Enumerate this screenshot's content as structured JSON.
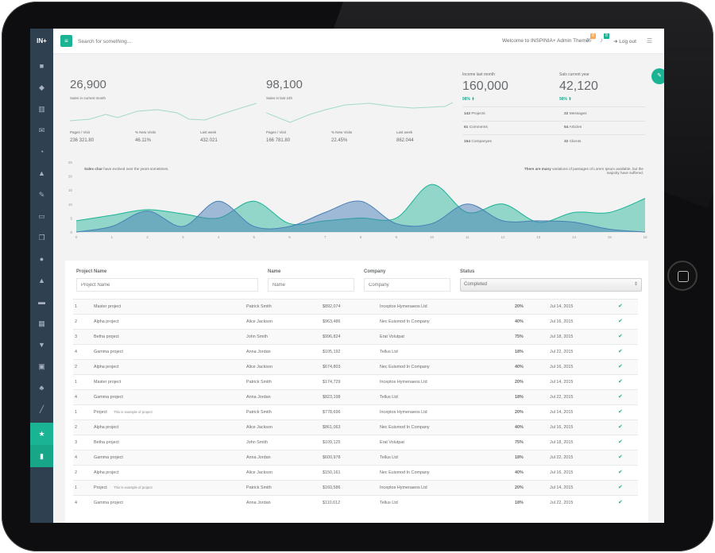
{
  "app": {
    "logo": "IN+"
  },
  "topbar": {
    "search_placeholder": "Search for something...",
    "welcome": "Welcome to INSPINIA+ Admin Theme.",
    "mail_count": "8",
    "alert_count": "8",
    "logout": "Log out"
  },
  "stats": [
    {
      "value": "26,900",
      "label": "Sales in current month",
      "mini": [
        {
          "h": "Pages / Visit",
          "v": "236 321.80"
        },
        {
          "h": "% New Visits",
          "v": "46.11%"
        },
        {
          "h": "Last week",
          "v": "432.021"
        }
      ]
    },
    {
      "value": "98,100",
      "label": "Sales in last 24h",
      "mini": [
        {
          "h": "Pages / Visit",
          "v": "166 781.80"
        },
        {
          "h": "% New Visits",
          "v": "22.45%"
        },
        {
          "h": "Last week",
          "v": "862.044"
        }
      ]
    }
  ],
  "kpi": {
    "income": {
      "title": "Income last month",
      "value": "160,000",
      "pct": "98%"
    },
    "sales": {
      "title": "Sals current year",
      "value": "42,120",
      "pct": "98%"
    },
    "rows": [
      {
        "n1": "142",
        "l1": "Projects",
        "n2": "22",
        "l2": "Messages"
      },
      {
        "n1": "61",
        "l1": "Comments",
        "n2": "54",
        "l2": "Articles"
      },
      {
        "n1": "154",
        "l1": "Companyes",
        "n2": "32",
        "l2": "Clients"
      }
    ]
  },
  "chart_note_left": {
    "bold": "Sales char",
    "text": "have evolved over the years sometimes."
  },
  "chart_note_right": {
    "bold": "There are many",
    "text": "variations of passages of Lorem Ipsum available, but the",
    "text2": "majority have suffered."
  },
  "chart_data": {
    "type": "area",
    "x": [
      0,
      1,
      2,
      3,
      4,
      5,
      6,
      7,
      8,
      9,
      10,
      11,
      12,
      13,
      14,
      15,
      16
    ],
    "ylim": [
      0,
      25
    ],
    "yticks": [
      0,
      5,
      10,
      15,
      20,
      25
    ],
    "series": [
      {
        "color": "#1ab394",
        "values": [
          4,
          6,
          8,
          6.5,
          5,
          11,
          3,
          4,
          5,
          5,
          17,
          7,
          10,
          3.5,
          7,
          7,
          12
        ]
      },
      {
        "color": "#4a7fb5",
        "values": [
          0,
          2,
          7.5,
          2,
          11,
          2,
          2,
          7,
          11,
          3,
          3,
          10,
          4,
          4,
          3.5,
          1,
          0
        ]
      }
    ]
  },
  "filters": {
    "project_label": "Project Name",
    "project_ph": "Project Name",
    "name_label": "Name",
    "name_ph": "Name",
    "company_label": "Company",
    "company_ph": "Company",
    "status_label": "Status",
    "status_value": "Completed"
  },
  "table": [
    {
      "id": "1",
      "project": "Master project",
      "note": "",
      "name": "Patrick Smith",
      "amount": "$892,074",
      "company": "Inceptos Hymenaeos Ltd",
      "pct": "20%",
      "date": "Jul 14, 2015"
    },
    {
      "id": "2",
      "project": "Alpha project",
      "note": "",
      "name": "Alice Jackson",
      "amount": "$963,486",
      "company": "Nec Euismod In Company",
      "pct": "40%",
      "date": "Jul 16, 2015"
    },
    {
      "id": "3",
      "project": "Betha project",
      "note": "",
      "name": "John Smith",
      "amount": "$996,824",
      "company": "Erat Volutpat",
      "pct": "75%",
      "date": "Jul 18, 2015"
    },
    {
      "id": "4",
      "project": "Gamma project",
      "note": "",
      "name": "Anna Jordan",
      "amount": "$105,192",
      "company": "Tellus Ltd",
      "pct": "18%",
      "date": "Jul 22, 2015"
    },
    {
      "id": "2",
      "project": "Alpha project",
      "note": "",
      "name": "Alice Jackson",
      "amount": "$674,803",
      "company": "Nec Euismod In Company",
      "pct": "40%",
      "date": "Jul 16, 2015"
    },
    {
      "id": "1",
      "project": "Master project",
      "note": "",
      "name": "Patrick Smith",
      "amount": "$174,729",
      "company": "Inceptos Hymenaeos Ltd",
      "pct": "20%",
      "date": "Jul 14, 2015"
    },
    {
      "id": "4",
      "project": "Gamma project",
      "note": "",
      "name": "Anna Jordan",
      "amount": "$823,198",
      "company": "Tellus Ltd",
      "pct": "18%",
      "date": "Jul 22, 2015"
    },
    {
      "id": "1",
      "project": "Project",
      "note": "This is example of project",
      "name": "Patrick Smith",
      "amount": "$778,696",
      "company": "Inceptos Hymenaeos Ltd",
      "pct": "20%",
      "date": "Jul 14, 2015"
    },
    {
      "id": "2",
      "project": "Alpha project",
      "note": "",
      "name": "Alice Jackson",
      "amount": "$861,063",
      "company": "Nec Euismod In Company",
      "pct": "40%",
      "date": "Jul 16, 2015"
    },
    {
      "id": "3",
      "project": "Betha project",
      "note": "",
      "name": "John Smith",
      "amount": "$109,125",
      "company": "Erat Volutpat",
      "pct": "75%",
      "date": "Jul 18, 2015"
    },
    {
      "id": "4",
      "project": "Gamma project",
      "note": "",
      "name": "Anna Jordan",
      "amount": "$600,978",
      "company": "Tellus Ltd",
      "pct": "18%",
      "date": "Jul 22, 2015"
    },
    {
      "id": "2",
      "project": "Alpha project",
      "note": "",
      "name": "Alice Jackson",
      "amount": "$150,161",
      "company": "Nec Euismod In Company",
      "pct": "40%",
      "date": "Jul 16, 2015"
    },
    {
      "id": "1",
      "project": "Project",
      "note": "This is example of project",
      "name": "Patrick Smith",
      "amount": "$160,586",
      "company": "Inceptos Hymenaeos Ltd",
      "pct": "20%",
      "date": "Jul 14, 2015"
    },
    {
      "id": "4",
      "project": "Gamma project",
      "note": "",
      "name": "Anna Jordan",
      "amount": "$110,612",
      "company": "Tellus Ltd",
      "pct": "18%",
      "date": "Jul 22, 2015"
    }
  ],
  "colors": {
    "accent": "#1ab394",
    "sidebar": "#2f4050",
    "series2": "#4a7fb5"
  },
  "icons": {
    "check": "✔"
  }
}
